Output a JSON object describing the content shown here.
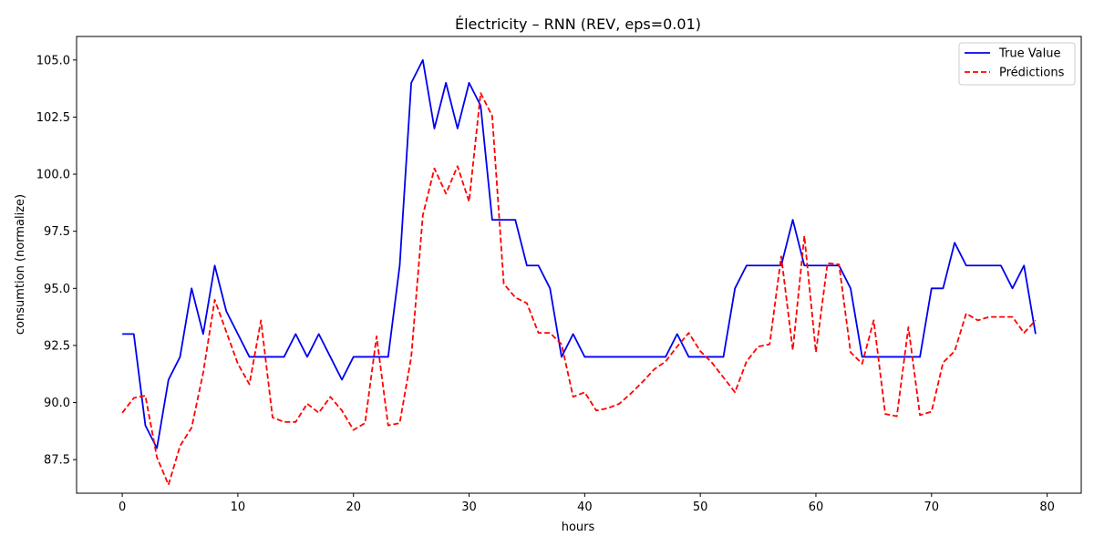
{
  "chart_data": {
    "type": "line",
    "title": "Électricity – RNN (REV, eps=0.01)",
    "xlabel": "hours",
    "ylabel": "consumtion (normalize)",
    "xlim": [
      -3.95,
      82.95
    ],
    "ylim": [
      86.03,
      106.03
    ],
    "xticks": [
      0,
      10,
      20,
      30,
      40,
      50,
      60,
      70,
      80
    ],
    "yticks": [
      87.5,
      90.0,
      92.5,
      95.0,
      97.5,
      100.0,
      102.5,
      105.0
    ],
    "ytick_labels": [
      "87.5",
      "90.0",
      "92.5",
      "95.0",
      "97.5",
      "100.0",
      "102.5",
      "105.0"
    ],
    "grid": false,
    "legend_position": "top-right",
    "x": [
      0,
      1,
      2,
      3,
      4,
      5,
      6,
      7,
      8,
      9,
      10,
      11,
      12,
      13,
      14,
      15,
      16,
      17,
      18,
      19,
      20,
      21,
      22,
      23,
      24,
      25,
      26,
      27,
      28,
      29,
      30,
      31,
      32,
      33,
      34,
      35,
      36,
      37,
      38,
      39,
      40,
      41,
      42,
      43,
      44,
      45,
      46,
      47,
      48,
      49,
      50,
      51,
      52,
      53,
      54,
      55,
      56,
      57,
      58,
      59,
      60,
      61,
      62,
      63,
      64,
      65,
      66,
      67,
      68,
      69,
      70,
      71,
      72,
      73,
      74,
      75,
      76,
      77,
      78,
      79
    ],
    "series": [
      {
        "name": "True Value",
        "color": "#0000ee",
        "style": "solid",
        "values": [
          93,
          93,
          89,
          88,
          91,
          92,
          95,
          93,
          96,
          94,
          93,
          92,
          92,
          92,
          92,
          93,
          92,
          93,
          92,
          91,
          92,
          92,
          92,
          92,
          96,
          104,
          105,
          102,
          104,
          102,
          104,
          103,
          98,
          98,
          98,
          96,
          96,
          95,
          92,
          93,
          92,
          92,
          92,
          92,
          92,
          92,
          92,
          92,
          93,
          92,
          92,
          92,
          92,
          95,
          96,
          96,
          96,
          96,
          98,
          96,
          96,
          96,
          96,
          95,
          92,
          92,
          92,
          92,
          92,
          92,
          95,
          95,
          97,
          96,
          96,
          96,
          96,
          95,
          96,
          93
        ]
      },
      {
        "name": "Prédictions",
        "color": "#ff0000",
        "style": "dashed",
        "values": [
          89.55,
          90.2,
          90.3,
          87.6,
          86.4,
          88.1,
          88.9,
          91.3,
          94.5,
          93.1,
          91.7,
          90.8,
          93.6,
          89.35,
          89.15,
          89.15,
          89.95,
          89.55,
          90.25,
          89.65,
          88.8,
          89.1,
          92.9,
          89.0,
          89.1,
          92.0,
          98.2,
          100.25,
          99.15,
          100.35,
          98.8,
          103.55,
          102.55,
          95.2,
          94.6,
          94.35,
          93.05,
          93.05,
          92.55,
          90.25,
          90.45,
          89.65,
          89.75,
          89.95,
          90.4,
          90.9,
          91.45,
          91.8,
          92.45,
          93.05,
          92.25,
          91.75,
          91.1,
          90.45,
          91.8,
          92.45,
          92.55,
          96.4,
          92.3,
          97.3,
          92.2,
          96.1,
          96.05,
          92.2,
          91.7,
          93.6,
          89.5,
          89.4,
          93.3,
          89.45,
          89.6,
          91.75,
          92.25,
          93.9,
          93.6,
          93.75,
          93.75,
          93.75,
          93.05,
          93.6
        ]
      }
    ]
  }
}
